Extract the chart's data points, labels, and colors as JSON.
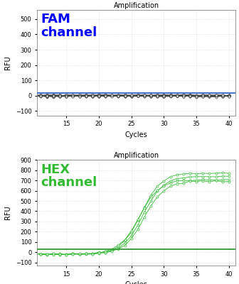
{
  "title": "Amplification",
  "xlabel": "Cycles",
  "ylabel": "RFU",
  "fam_label": "FAM\nchannel",
  "hex_label": "HEX\nchannel",
  "fam_color": "#444444",
  "hex_color": "#33bb33",
  "threshold_color_fam": "#3366cc",
  "threshold_color_hex": "#339933",
  "fam_ylim": [
    -130,
    560
  ],
  "hex_ylim": [
    -130,
    900
  ],
  "fam_yticks": [
    -100,
    0,
    100,
    200,
    300,
    400,
    500
  ],
  "hex_yticks": [
    -100,
    0,
    100,
    200,
    300,
    400,
    500,
    600,
    700,
    800,
    900
  ],
  "xlim": [
    10.5,
    41
  ],
  "xticks": [
    15,
    20,
    25,
    30,
    35,
    40
  ],
  "fam_threshold": 18,
  "hex_threshold": 30,
  "background": "#ffffff",
  "grid_color": "#cccccc",
  "title_fontsize": 7,
  "label_fontsize": 7,
  "tick_fontsize": 6,
  "annot_fontsize": 13
}
